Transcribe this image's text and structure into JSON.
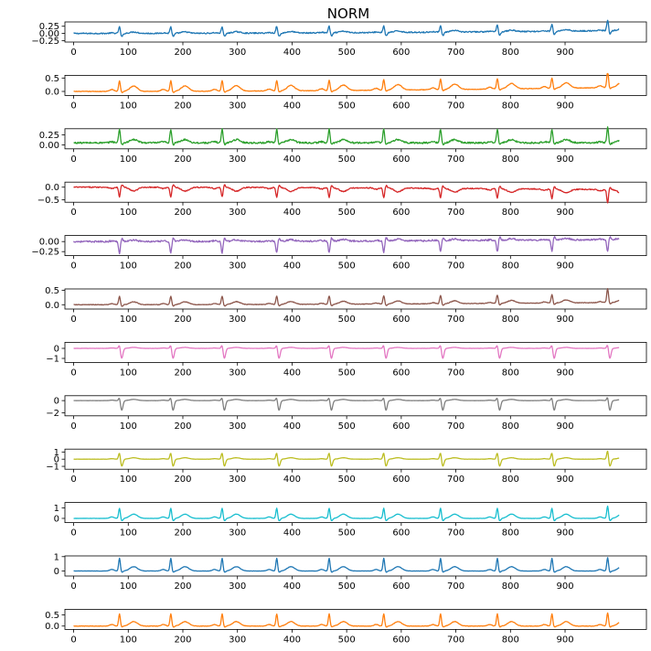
{
  "chart_data": {
    "type": "line",
    "title": "NORM",
    "xlabel": "",
    "ylabel": "",
    "grid": false,
    "legend": "none",
    "xlim": [
      -16,
      1049
    ],
    "x_ticks": [
      0,
      100,
      200,
      300,
      400,
      500,
      600,
      700,
      800,
      900
    ],
    "sample_count": 1000,
    "r_peak_positions": [
      84,
      178,
      272,
      372,
      468,
      568,
      672,
      776,
      876,
      978
    ],
    "panels": [
      {
        "lead": 1,
        "color": "#1f77b4",
        "ylim": [
          -0.3,
          0.4
        ],
        "y_ticks": [
          -0.25,
          0.0,
          0.25
        ],
        "y_tick_labels": [
          "−0.25",
          "0.00",
          "0.25"
        ],
        "baseline": 0.0,
        "r_peak": 0.25,
        "s_wave": -0.12,
        "t_wave": 0.05,
        "drift": 0.1,
        "noise": 0.02,
        "final_peak": 0.4
      },
      {
        "lead": 2,
        "color": "#ff7f0e",
        "ylim": [
          -0.15,
          0.6
        ],
        "y_ticks": [
          0.0,
          0.5
        ],
        "y_tick_labels": [
          "0.0",
          "0.5"
        ],
        "baseline": 0.0,
        "r_peak": 0.4,
        "s_wave": -0.05,
        "t_wave": 0.2,
        "drift": 0.15,
        "noise": 0.01,
        "final_peak": 0.62
      },
      {
        "lead": 3,
        "color": "#2ca02c",
        "ylim": [
          -0.1,
          0.4
        ],
        "y_ticks": [
          0.0,
          0.25
        ],
        "y_tick_labels": [
          "0.00",
          "0.25"
        ],
        "baseline": 0.05,
        "r_peak": 0.35,
        "s_wave": -0.05,
        "t_wave": 0.08,
        "drift": 0.0,
        "noise": 0.02,
        "final_peak": 0.4
      },
      {
        "lead": 4,
        "color": "#d62728",
        "ylim": [
          -0.6,
          0.2
        ],
        "y_ticks": [
          -0.5,
          0.0
        ],
        "y_tick_labels": [
          "−0.5",
          "0.0"
        ],
        "baseline": 0.0,
        "r_peak": -0.4,
        "s_wave": 0.1,
        "t_wave": -0.15,
        "drift": -0.1,
        "noise": 0.02,
        "final_peak": -0.55
      },
      {
        "lead": 5,
        "color": "#9467bd",
        "ylim": [
          -0.35,
          0.15
        ],
        "y_ticks": [
          -0.25,
          0.0
        ],
        "y_tick_labels": [
          "−0.25",
          "0.00"
        ],
        "baseline": 0.0,
        "r_peak": -0.3,
        "s_wave": 0.08,
        "t_wave": 0.04,
        "drift": 0.05,
        "noise": 0.02,
        "final_peak": -0.3
      },
      {
        "lead": 6,
        "color": "#8c564b",
        "ylim": [
          -0.15,
          0.55
        ],
        "y_ticks": [
          0.0,
          0.5
        ],
        "y_tick_labels": [
          "0.0",
          "0.5"
        ],
        "baseline": 0.0,
        "r_peak": 0.3,
        "s_wave": -0.06,
        "t_wave": 0.1,
        "drift": 0.08,
        "noise": 0.01,
        "final_peak": 0.5
      },
      {
        "lead": 7,
        "color": "#e377c2",
        "ylim": [
          -1.4,
          0.6
        ],
        "y_ticks": [
          -1,
          0
        ],
        "y_tick_labels": [
          "−1",
          "0"
        ],
        "baseline": 0.0,
        "r_peak": 0.4,
        "s_wave": -1.0,
        "t_wave": 0.1,
        "drift": 0.0,
        "noise": 0.01,
        "final_peak": 0.45
      },
      {
        "lead": 8,
        "color": "#7f7f7f",
        "ylim": [
          -2.5,
          0.8
        ],
        "y_ticks": [
          -2,
          0
        ],
        "y_tick_labels": [
          "−2",
          "0"
        ],
        "baseline": 0.0,
        "r_peak": 0.6,
        "s_wave": -1.6,
        "t_wave": 0.2,
        "drift": 0.0,
        "noise": 0.01,
        "final_peak": 0.7
      },
      {
        "lead": 9,
        "color": "#bcbd22",
        "ylim": [
          -1.4,
          1.4
        ],
        "y_ticks": [
          -1,
          0,
          1
        ],
        "y_tick_labels": [
          "−1",
          "0",
          "1"
        ],
        "baseline": 0.0,
        "r_peak": 1.0,
        "s_wave": -1.0,
        "t_wave": 0.2,
        "drift": 0.0,
        "noise": 0.01,
        "final_peak": 1.3
      },
      {
        "lead": 10,
        "color": "#17becf",
        "ylim": [
          -0.4,
          1.5
        ],
        "y_ticks": [
          0,
          1
        ],
        "y_tick_labels": [
          "0",
          "1"
        ],
        "baseline": 0.0,
        "r_peak": 1.0,
        "s_wave": -0.25,
        "t_wave": 0.4,
        "drift": 0.0,
        "noise": 0.01,
        "final_peak": 1.2
      },
      {
        "lead": 11,
        "color": "#1f77b4",
        "ylim": [
          -0.35,
          1.05
        ],
        "y_ticks": [
          0,
          1
        ],
        "y_tick_labels": [
          "0",
          "1"
        ],
        "baseline": 0.0,
        "r_peak": 0.9,
        "s_wave": -0.1,
        "t_wave": 0.3,
        "drift": 0.0,
        "noise": 0.01,
        "final_peak": 0.95
      },
      {
        "lead": 12,
        "color": "#ff7f0e",
        "ylim": [
          -0.15,
          0.75
        ],
        "y_ticks": [
          0.0,
          0.5
        ],
        "y_tick_labels": [
          "0.0",
          "0.5"
        ],
        "baseline": 0.0,
        "r_peak": 0.55,
        "s_wave": -0.05,
        "t_wave": 0.2,
        "drift": 0.0,
        "noise": 0.01,
        "final_peak": 0.6
      }
    ]
  }
}
